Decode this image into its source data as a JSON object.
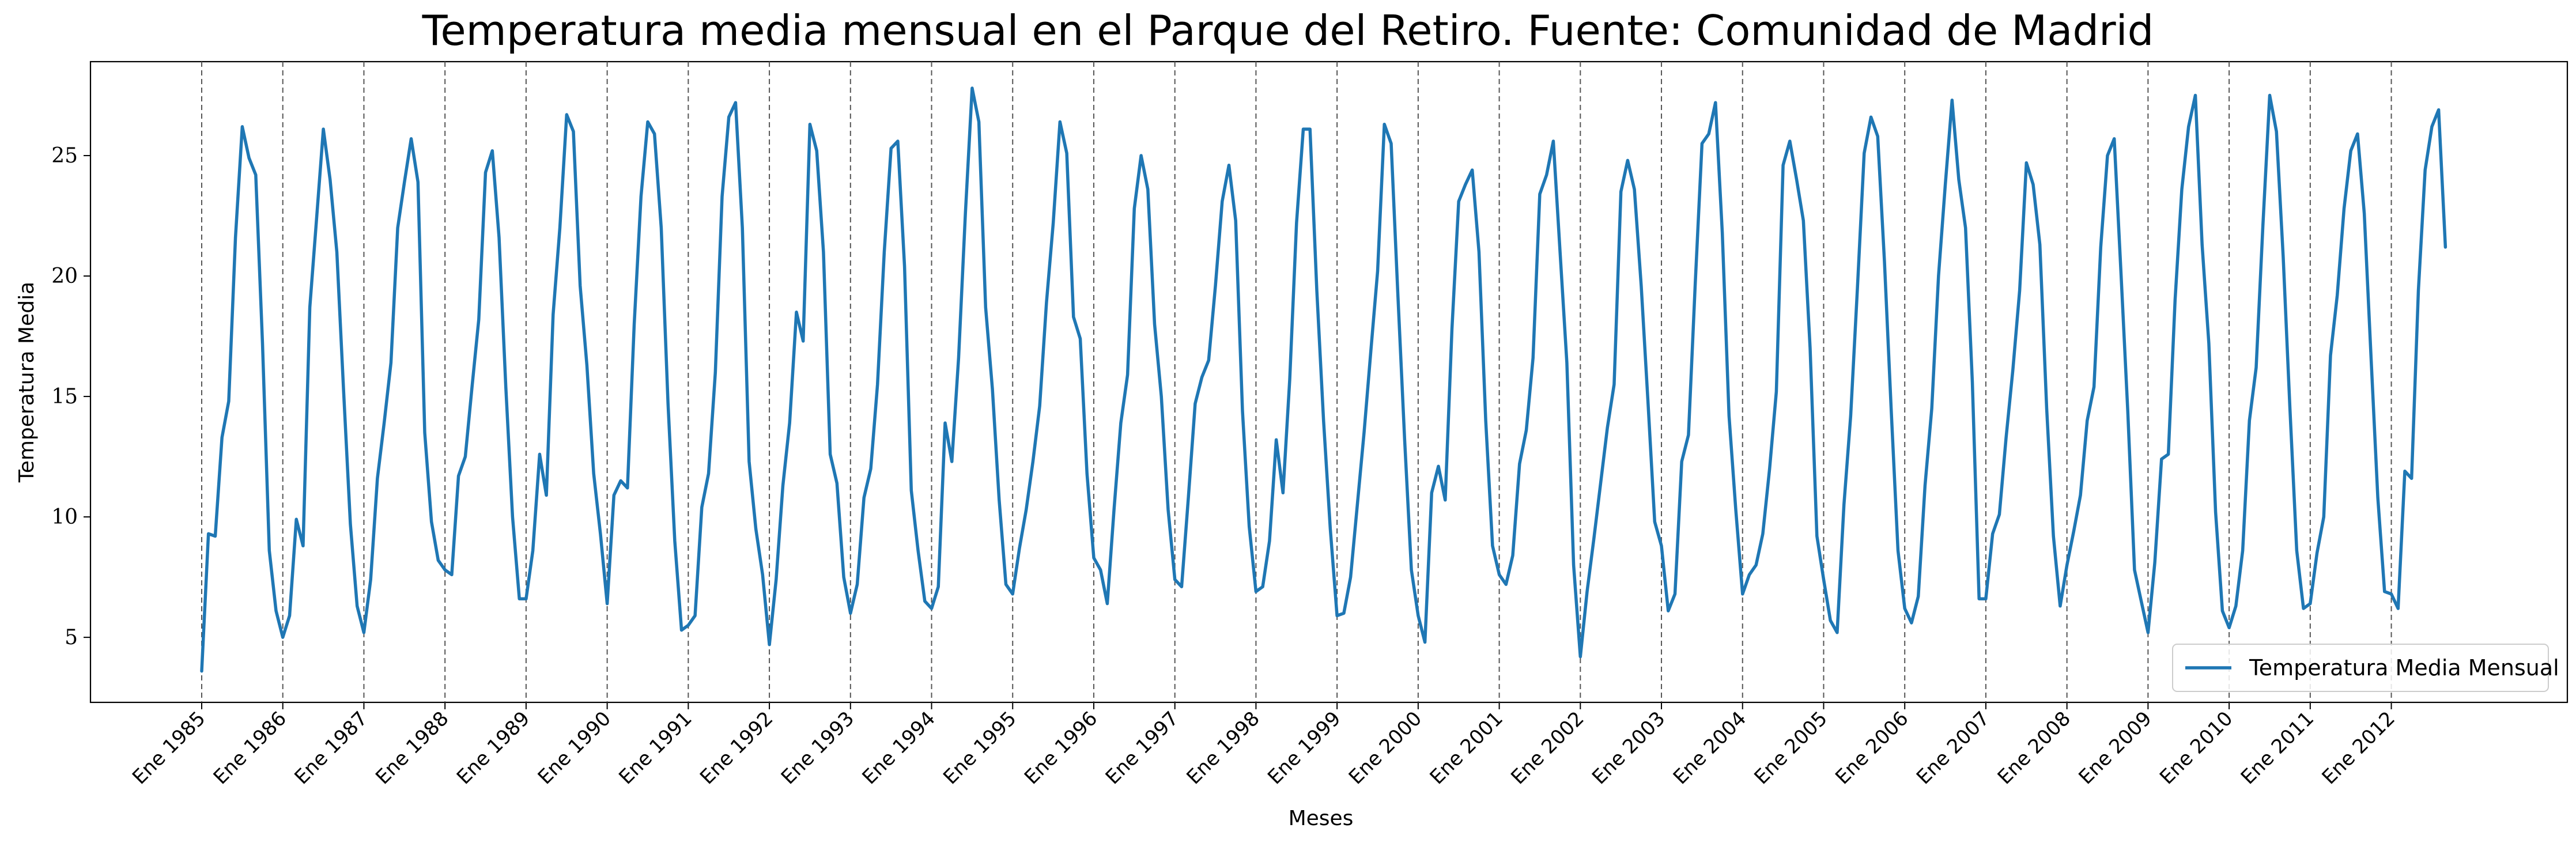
{
  "chart_data": {
    "type": "line",
    "title": "Temperatura media mensual en el Parque del Retiro. Fuente: Comunidad de Madrid",
    "xlabel": "Meses",
    "ylabel": "Temperatura Media",
    "ylim": [
      2.3,
      28.9
    ],
    "yticks": [
      5,
      10,
      15,
      20,
      25
    ],
    "x_start": "1985-01",
    "x_tick_labels": [
      "Ene 1985",
      "Ene 1986",
      "Ene 1987",
      "Ene 1988",
      "Ene 1989",
      "Ene 1990",
      "Ene 1991",
      "Ene 1992",
      "Ene 1993",
      "Ene 1994",
      "Ene 1995",
      "Ene 1996",
      "Ene 1997",
      "Ene 1998",
      "Ene 1999",
      "Ene 2000",
      "Ene 2001",
      "Ene 2002",
      "Ene 2003",
      "Ene 2004",
      "Ene 2005",
      "Ene 2006",
      "Ene 2007",
      "Ene 2008",
      "Ene 2009",
      "Ene 2010",
      "Ene 2011",
      "Ene 2012"
    ],
    "vertical_gridlines": "dashed at each January",
    "legend_position": "bottom-right",
    "series": [
      {
        "name": "Temperatura Media Mensual",
        "color": "#1f77b4",
        "values": [
          3.6,
          9.3,
          9.2,
          13.3,
          14.8,
          21.6,
          26.2,
          24.9,
          24.2,
          17.2,
          8.6,
          6.1,
          5.0,
          5.9,
          9.9,
          8.8,
          18.7,
          22.4,
          26.1,
          24.0,
          21.0,
          15.2,
          9.7,
          6.3,
          5.2,
          7.4,
          11.6,
          13.9,
          16.4,
          22.0,
          23.9,
          25.7,
          23.9,
          13.5,
          9.8,
          8.2,
          7.8,
          7.6,
          11.7,
          12.5,
          15.4,
          18.2,
          24.3,
          25.2,
          21.6,
          15.4,
          10.0,
          6.6,
          6.6,
          8.6,
          12.6,
          10.9,
          18.4,
          22.0,
          26.7,
          26.0,
          19.6,
          16.3,
          11.8,
          9.3,
          6.4,
          10.9,
          11.5,
          11.2,
          18.0,
          23.3,
          26.4,
          25.9,
          22.0,
          14.7,
          9.0,
          5.3,
          5.5,
          5.9,
          10.4,
          11.8,
          16.0,
          23.3,
          26.6,
          27.2,
          22.0,
          12.3,
          9.5,
          7.6,
          4.7,
          7.4,
          11.3,
          13.9,
          18.5,
          17.3,
          26.3,
          25.2,
          21.0,
          12.6,
          11.4,
          7.5,
          6.0,
          7.2,
          10.8,
          12.0,
          15.5,
          21.0,
          25.3,
          25.6,
          20.4,
          11.1,
          8.6,
          6.5,
          6.2,
          7.1,
          13.9,
          12.3,
          16.6,
          22.6,
          27.8,
          26.4,
          18.7,
          15.3,
          10.7,
          7.2,
          6.8,
          8.7,
          10.3,
          12.3,
          14.6,
          18.9,
          22.2,
          26.4,
          25.1,
          18.3,
          17.4,
          11.8,
          8.3,
          7.8,
          6.4,
          10.3,
          13.9,
          15.9,
          22.8,
          25.0,
          23.6,
          18.0,
          15.0,
          10.3,
          7.4,
          7.1,
          10.8,
          14.7,
          15.8,
          16.5,
          19.6,
          23.1,
          24.6,
          22.3,
          14.4,
          9.6,
          6.9,
          7.1,
          9.0,
          13.2,
          11.0,
          15.7,
          22.2,
          26.1,
          26.1,
          19.4,
          14.0,
          9.5,
          5.9,
          6.0,
          7.5,
          10.5,
          13.5,
          16.9,
          20.2,
          26.3,
          25.5,
          19.2,
          13.2,
          7.8,
          5.9,
          4.8,
          11.0,
          12.1,
          10.7,
          17.8,
          23.1,
          23.8,
          24.4,
          21.0,
          14.0,
          8.8,
          7.6,
          7.2,
          8.4,
          12.2,
          13.6,
          16.6,
          23.4,
          24.2,
          25.6,
          21.0,
          16.4,
          8.0,
          4.2,
          6.9,
          9.1,
          11.4,
          13.7,
          15.5,
          23.5,
          24.8,
          23.6,
          19.6,
          14.8,
          9.8,
          8.8,
          6.1,
          6.8,
          12.3,
          13.4,
          19.7,
          25.5,
          25.9,
          27.2,
          21.8,
          14.2,
          10.3,
          6.8,
          7.6,
          8.0,
          9.3,
          12.0,
          15.2,
          24.6,
          25.6,
          24.0,
          22.3,
          17.0,
          9.2,
          7.4,
          5.7,
          5.2,
          10.5,
          14.2,
          19.5,
          25.1,
          26.6,
          25.8,
          20.6,
          14.4,
          8.6,
          6.2,
          5.6,
          6.7,
          11.3,
          14.5,
          20.0,
          23.8,
          27.3,
          24.0,
          22.0,
          15.6,
          6.6,
          6.6,
          9.3,
          10.1,
          13.3,
          16.1,
          19.4,
          24.7,
          23.8,
          21.3,
          14.5,
          9.2,
          6.3,
          8.0,
          9.4,
          10.9,
          14.0,
          15.4,
          21.2,
          25.0,
          25.7,
          20.1,
          14.4,
          7.8,
          6.5,
          5.2,
          8.1,
          12.4,
          12.6,
          19.0,
          23.6,
          26.2,
          27.5,
          21.3,
          17.2,
          10.2,
          6.1,
          5.4,
          6.3,
          8.6,
          14.0,
          16.2,
          22.1,
          27.5,
          26.0,
          20.8,
          14.5,
          8.6,
          6.2,
          6.4,
          8.5,
          10.0,
          16.7,
          19.2,
          22.8,
          25.2,
          25.9,
          22.6,
          16.6,
          10.8,
          6.9,
          6.8,
          6.2,
          11.9,
          11.6,
          19.4,
          24.4,
          26.2,
          26.9,
          21.2
        ]
      }
    ]
  }
}
